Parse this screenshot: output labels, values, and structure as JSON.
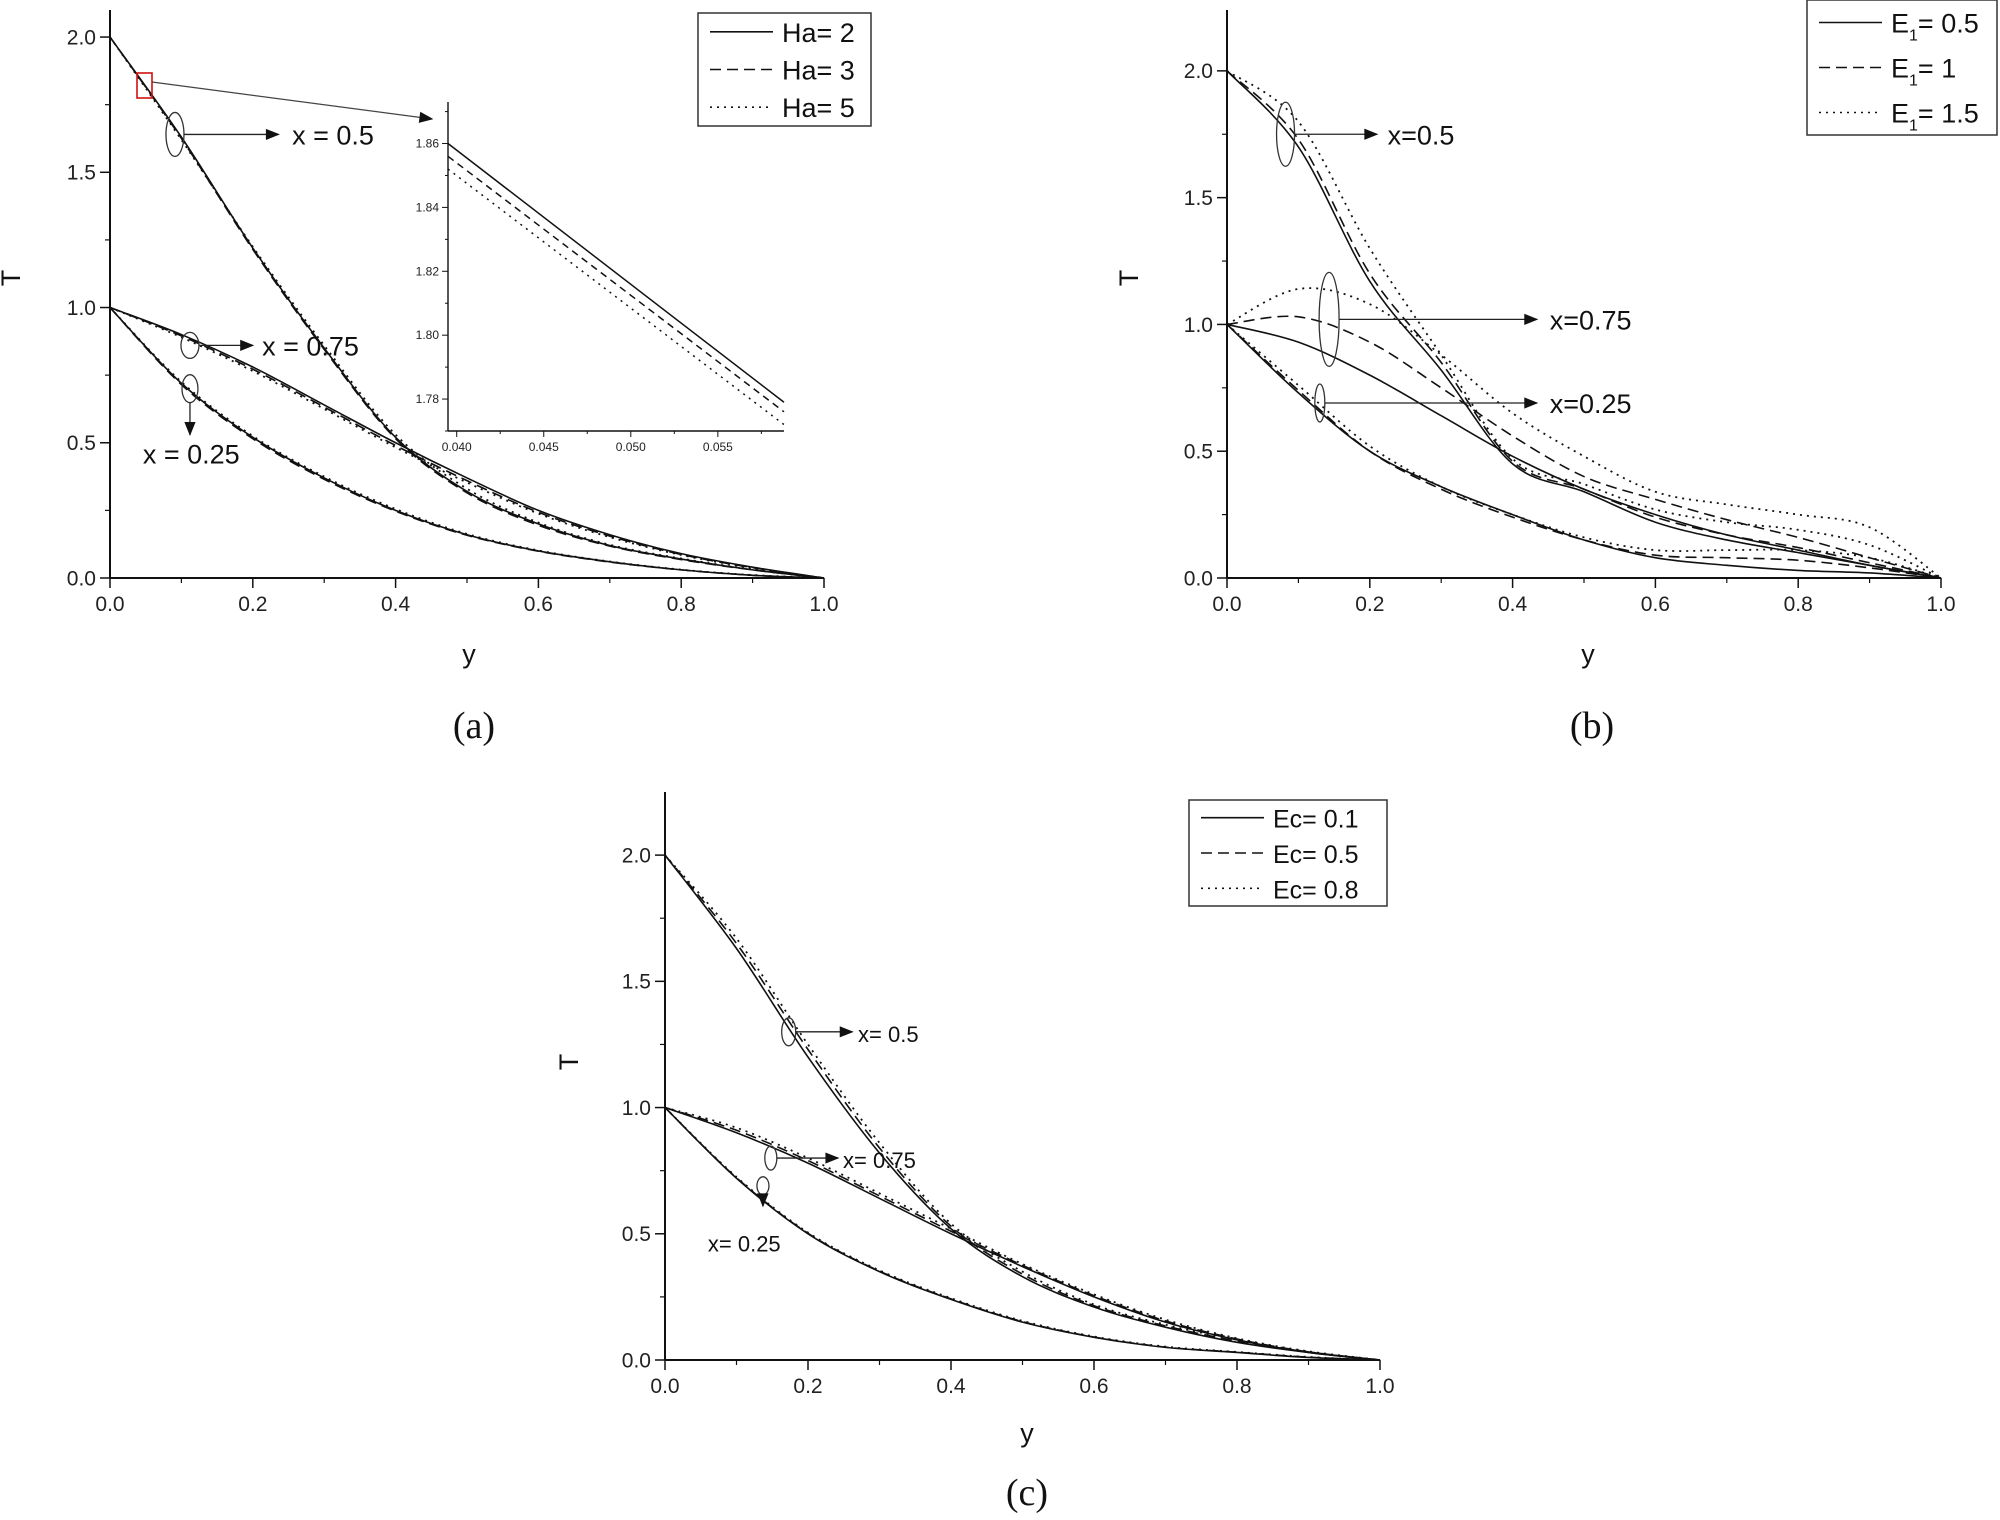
{
  "chart_data": [
    {
      "id": "a",
      "type": "line",
      "caption": "(a)",
      "xlabel": "y",
      "ylabel": "T",
      "xlim": [
        0,
        1.0
      ],
      "ylim": [
        0,
        2.1
      ],
      "xticks": [
        "0.0",
        "0.2",
        "0.4",
        "0.6",
        "0.8",
        "1.0"
      ],
      "yticks": [
        "0.0",
        "0.5",
        "1.0",
        "1.5",
        "2.0"
      ],
      "legend_position": "top-right",
      "x": [
        0,
        0.1,
        0.2,
        0.3,
        0.4,
        0.5,
        0.6,
        0.7,
        0.8,
        0.9,
        1.0
      ],
      "series": [
        {
          "name": "Ha= 2",
          "style": "solid",
          "curves": {
            "x=0.5": [
              2.0,
              1.63,
              1.22,
              0.85,
              0.52,
              0.32,
              0.2,
              0.12,
              0.07,
              0.03,
              0
            ],
            "x=0.75": [
              1.0,
              0.9,
              0.78,
              0.64,
              0.5,
              0.37,
              0.25,
              0.16,
              0.09,
              0.04,
              0
            ],
            "x=0.25": [
              1.0,
              0.72,
              0.52,
              0.37,
              0.25,
              0.16,
              0.1,
              0.06,
              0.03,
              0.01,
              0
            ]
          }
        },
        {
          "name": "Ha= 3",
          "style": "dashed",
          "curves": {
            "x=0.5": [
              2.0,
              1.625,
              1.215,
              0.845,
              0.515,
              0.315,
              0.195,
              0.118,
              0.068,
              0.03,
              0
            ],
            "x=0.75": [
              1.0,
              0.895,
              0.772,
              0.632,
              0.49,
              0.36,
              0.243,
              0.155,
              0.087,
              0.038,
              0
            ],
            "x=0.25": [
              1.0,
              0.715,
              0.515,
              0.365,
              0.247,
              0.158,
              0.099,
              0.059,
              0.03,
              0.01,
              0
            ]
          }
        },
        {
          "name": "Ha= 5",
          "style": "dotted",
          "curves": {
            "x=0.5": [
              2.0,
              1.62,
              1.225,
              0.86,
              0.53,
              0.33,
              0.205,
              0.123,
              0.072,
              0.032,
              0
            ],
            "x=0.75": [
              1.0,
              0.89,
              0.765,
              0.625,
              0.483,
              0.353,
              0.238,
              0.151,
              0.085,
              0.037,
              0
            ],
            "x=0.25": [
              1.0,
              0.725,
              0.525,
              0.375,
              0.255,
              0.163,
              0.102,
              0.061,
              0.031,
              0.011,
              0
            ]
          }
        }
      ],
      "annotations": [
        "x = 0.5",
        "x = 0.75",
        "x = 0.25"
      ],
      "inset": {
        "xlim": [
          0.0395,
          0.0588
        ],
        "ylim": [
          1.77,
          1.873
        ],
        "xticks": [
          "0.040",
          "0.045",
          "0.050",
          "0.055"
        ],
        "yticks": [
          "1.78",
          "1.80",
          "1.82",
          "1.84",
          "1.86"
        ],
        "x": [
          0.0395,
          0.0588
        ],
        "series": [
          {
            "name": "Ha= 2",
            "style": "solid",
            "values": [
              1.86,
              1.779
            ]
          },
          {
            "name": "Ha= 3",
            "style": "dashed",
            "values": [
              1.856,
              1.776
            ]
          },
          {
            "name": "Ha= 5",
            "style": "dotted",
            "values": [
              1.852,
              1.772
            ]
          }
        ]
      }
    },
    {
      "id": "b",
      "type": "line",
      "caption": "(b)",
      "xlabel": "y",
      "ylabel": "T",
      "xlim": [
        0,
        1.0
      ],
      "ylim": [
        0,
        2.24
      ],
      "xticks": [
        "0.0",
        "0.2",
        "0.4",
        "0.6",
        "0.8",
        "1.0"
      ],
      "yticks": [
        "0.0",
        "0.5",
        "1.0",
        "1.5",
        "2.0"
      ],
      "legend_position": "top-right",
      "x": [
        0,
        0.1,
        0.2,
        0.3,
        0.4,
        0.5,
        0.6,
        0.7,
        0.8,
        0.9,
        1.0
      ],
      "series": [
        {
          "name": "E1= 0.5",
          "name_main": "E",
          "name_sub": "1",
          "name_rest": "= 0.5",
          "style": "solid",
          "curves": {
            "x=0.5": [
              2.0,
              1.7,
              1.17,
              0.82,
              0.45,
              0.34,
              0.22,
              0.15,
              0.1,
              0.05,
              0
            ],
            "x=0.75": [
              1.0,
              0.93,
              0.8,
              0.64,
              0.48,
              0.35,
              0.25,
              0.17,
              0.11,
              0.05,
              0
            ],
            "x=0.25": [
              1.0,
              0.73,
              0.5,
              0.36,
              0.25,
              0.15,
              0.08,
              0.05,
              0.03,
              0.02,
              0
            ]
          }
        },
        {
          "name": "E1= 1",
          "name_main": "E",
          "name_sub": "1",
          "name_rest": "= 1",
          "style": "dashed",
          "curves": {
            "x=0.5": [
              2.0,
              1.73,
              1.2,
              0.85,
              0.46,
              0.35,
              0.24,
              0.17,
              0.12,
              0.06,
              0
            ],
            "x=0.75": [
              1.0,
              1.03,
              0.93,
              0.75,
              0.56,
              0.4,
              0.31,
              0.23,
              0.16,
              0.08,
              0
            ],
            "x=0.25": [
              1.0,
              0.74,
              0.5,
              0.35,
              0.24,
              0.15,
              0.09,
              0.08,
              0.07,
              0.04,
              0
            ]
          }
        },
        {
          "name": "E1= 1.5",
          "name_main": "E",
          "name_sub": "1",
          "name_rest": "= 1.5",
          "style": "dotted",
          "curves": {
            "x=0.5": [
              2.0,
              1.8,
              1.3,
              0.88,
              0.47,
              0.37,
              0.27,
              0.22,
              0.19,
              0.13,
              0
            ],
            "x=0.75": [
              1.0,
              1.14,
              1.08,
              0.88,
              0.65,
              0.48,
              0.34,
              0.29,
              0.25,
              0.2,
              0
            ],
            "x=0.25": [
              1.0,
              0.76,
              0.52,
              0.36,
              0.25,
              0.16,
              0.11,
              0.11,
              0.11,
              0.08,
              0
            ]
          }
        }
      ],
      "annotations": [
        "x=0.5",
        "x=0.75",
        "x=0.25"
      ]
    },
    {
      "id": "c",
      "type": "line",
      "caption": "(c)",
      "xlabel": "y",
      "ylabel": "T",
      "xlim": [
        0,
        1.0
      ],
      "ylim": [
        0,
        2.25
      ],
      "xticks": [
        "0.0",
        "0.2",
        "0.4",
        "0.6",
        "0.8",
        "1.0"
      ],
      "yticks": [
        "0.0",
        "0.5",
        "1.0",
        "1.5",
        "2.0"
      ],
      "legend_position": "top-right",
      "x": [
        0,
        0.1,
        0.2,
        0.3,
        0.4,
        0.5,
        0.6,
        0.7,
        0.8,
        0.9,
        1.0
      ],
      "series": [
        {
          "name": "Ec= 0.1",
          "style": "solid",
          "curves": {
            "x=0.5": [
              2.0,
              1.63,
              1.2,
              0.82,
              0.52,
              0.33,
              0.21,
              0.13,
              0.07,
              0.03,
              0
            ],
            "x=0.75": [
              1.0,
              0.9,
              0.78,
              0.64,
              0.5,
              0.37,
              0.25,
              0.15,
              0.08,
              0.03,
              0
            ],
            "x=0.25": [
              1.0,
              0.72,
              0.5,
              0.35,
              0.24,
              0.15,
              0.09,
              0.05,
              0.03,
              0.01,
              0
            ]
          }
        },
        {
          "name": "Ec= 0.5",
          "style": "dashed",
          "curves": {
            "x=0.5": [
              2.0,
              1.65,
              1.23,
              0.84,
              0.53,
              0.34,
              0.215,
              0.135,
              0.075,
              0.032,
              0
            ],
            "x=0.75": [
              1.0,
              0.91,
              0.79,
              0.65,
              0.51,
              0.375,
              0.255,
              0.155,
              0.083,
              0.032,
              0
            ],
            "x=0.25": [
              1.0,
              0.722,
              0.502,
              0.352,
              0.242,
              0.152,
              0.091,
              0.051,
              0.031,
              0.011,
              0
            ]
          }
        },
        {
          "name": "Ec= 0.8",
          "style": "dotted",
          "curves": {
            "x=0.5": [
              2.0,
              1.67,
              1.25,
              0.86,
              0.54,
              0.35,
              0.22,
              0.14,
              0.08,
              0.034,
              0
            ],
            "x=0.75": [
              1.0,
              0.92,
              0.8,
              0.66,
              0.52,
              0.38,
              0.26,
              0.16,
              0.086,
              0.034,
              0
            ],
            "x=0.25": [
              1.0,
              0.725,
              0.505,
              0.355,
              0.245,
              0.155,
              0.093,
              0.053,
              0.032,
              0.012,
              0
            ]
          }
        }
      ],
      "annotations": [
        "x= 0.5",
        "x= 0.75",
        "x= 0.25"
      ]
    }
  ]
}
